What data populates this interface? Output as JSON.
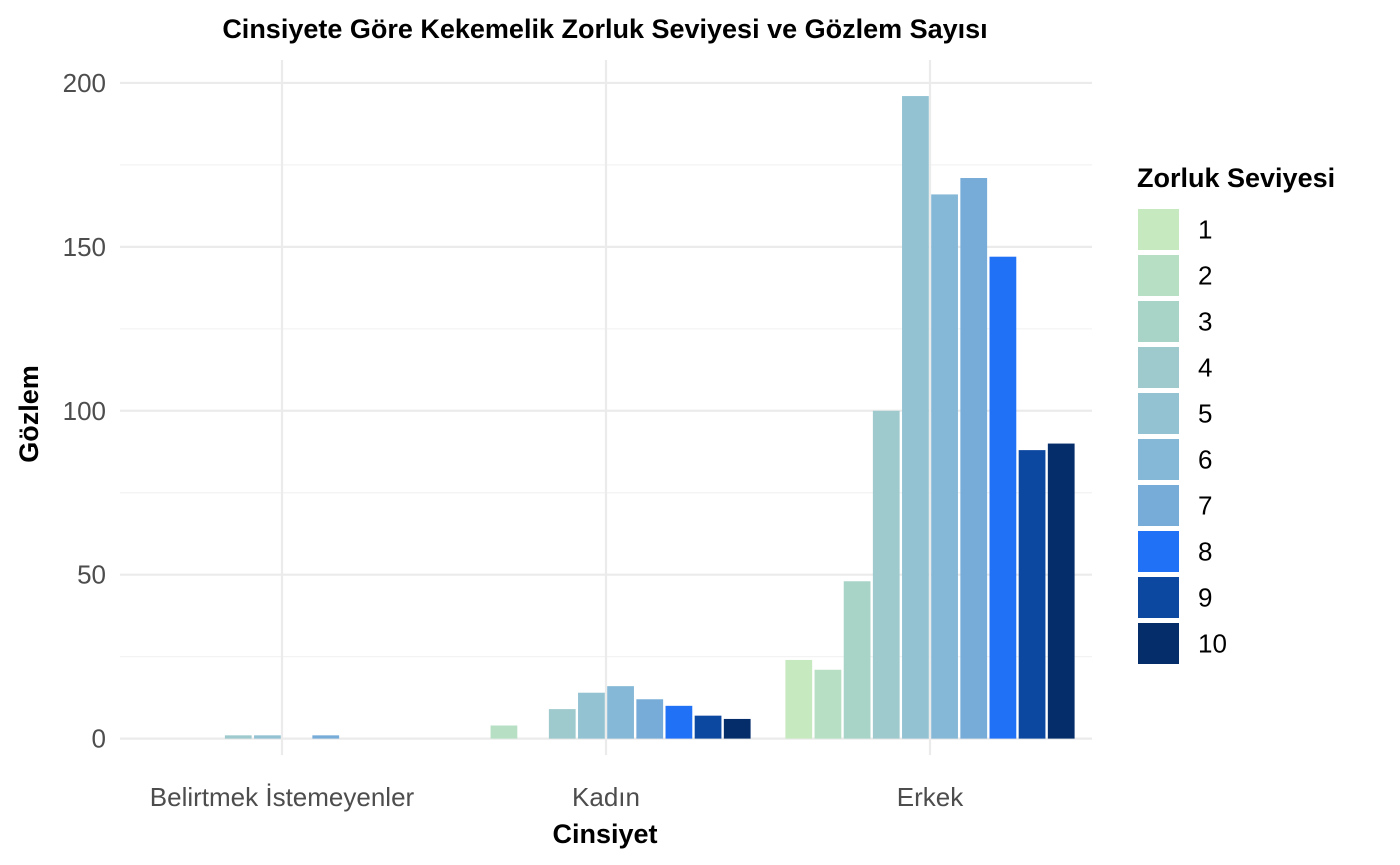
{
  "chart_data": {
    "type": "bar",
    "title": "Cinsiyete Göre Kekemelik Zorluk Seviyesi ve Gözlem Sayısı",
    "xlabel": "Cinsiyet",
    "ylabel": "Gözlem",
    "categories": [
      "Belirtmek İstemeyenler",
      "Kadın",
      "Erkek"
    ],
    "ylim": [
      -5,
      207
    ],
    "yticks": [
      0,
      50,
      100,
      150,
      200
    ],
    "grid": true,
    "legend": {
      "title": "Zorluk Seviyesi",
      "position": "right"
    },
    "series": [
      {
        "name": "1",
        "color": "#c7e9c0",
        "values": [
          0,
          0,
          24
        ]
      },
      {
        "name": "2",
        "color": "#b7dfc4",
        "values": [
          0,
          4,
          21
        ]
      },
      {
        "name": "3",
        "color": "#a8d4c8",
        "values": [
          0,
          0,
          48
        ]
      },
      {
        "name": "4",
        "color": "#9ecacd",
        "values": [
          1,
          9,
          100
        ]
      },
      {
        "name": "5",
        "color": "#93c2d2",
        "values": [
          1,
          14,
          196
        ]
      },
      {
        "name": "6",
        "color": "#85b8d6",
        "values": [
          0,
          16,
          166
        ]
      },
      {
        "name": "7",
        "color": "#77acd8",
        "values": [
          1,
          12,
          171
        ]
      },
      {
        "name": "8",
        "color": "#2171f7",
        "values": [
          0,
          10,
          147
        ]
      },
      {
        "name": "9",
        "color": "#0d48a0",
        "values": [
          0,
          7,
          88
        ]
      },
      {
        "name": "10",
        "color": "#052d6a",
        "values": [
          0,
          6,
          90
        ]
      }
    ]
  }
}
